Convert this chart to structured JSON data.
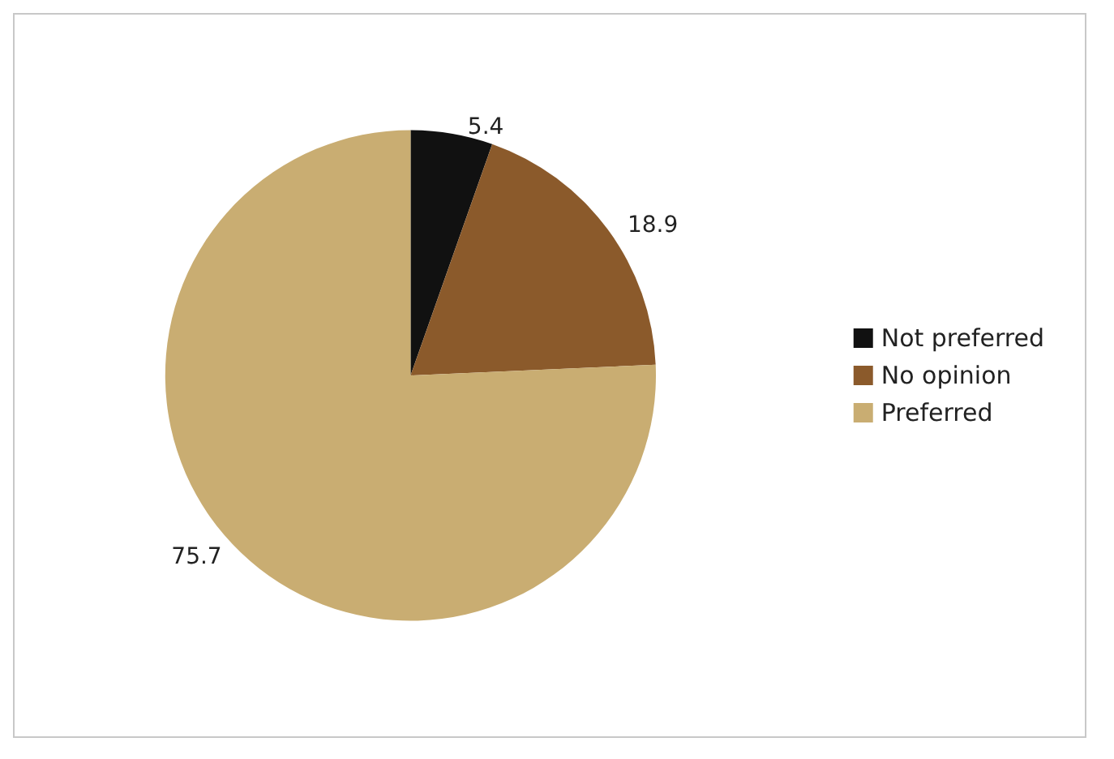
{
  "chart_data": {
    "type": "pie",
    "categories": [
      "Not preferred",
      "No opinion",
      "Preferred"
    ],
    "values": [
      5.4,
      18.9,
      75.7
    ],
    "colors": [
      "#111111",
      "#8b5a2b",
      "#c9ad72"
    ],
    "data_labels": true,
    "legend": "right"
  }
}
